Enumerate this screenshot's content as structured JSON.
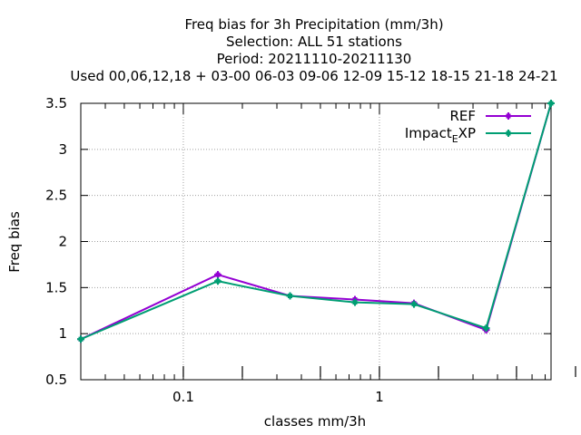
{
  "chart_data": {
    "type": "line",
    "title_lines": [
      "Freq bias  for 3h Precipitation (mm/3h)",
      "Selection: ALL     51 stations",
      "Period: 20211110-20211130",
      "Used  00,06,12,18 + 03-00 06-03 09-06 12-09 15-12 18-15 21-18 24-21"
    ],
    "xlabel": "classes mm/3h",
    "ylabel": "Freq bias",
    "x_scale": "log",
    "xlim": [
      0.03,
      7.5
    ],
    "ylim": [
      0.5,
      3.5
    ],
    "x_ticks": [
      {
        "value": 0.1,
        "label": "0.1"
      },
      {
        "value": 1,
        "label": "1"
      }
    ],
    "y_ticks": [
      {
        "value": 0.5,
        "label": "0.5"
      },
      {
        "value": 1,
        "label": "1"
      },
      {
        "value": 1.5,
        "label": "1.5"
      },
      {
        "value": 2,
        "label": "2"
      },
      {
        "value": 2.5,
        "label": "2.5"
      },
      {
        "value": 3,
        "label": "3"
      },
      {
        "value": 3.5,
        "label": "3.5"
      }
    ],
    "grid": true,
    "legend_position": "top-right",
    "series": [
      {
        "name": "REF",
        "color": "#9400d3",
        "x": [
          0.03,
          0.15,
          0.35,
          0.75,
          1.5,
          3.5,
          7.5
        ],
        "y": [
          0.94,
          1.64,
          1.41,
          1.37,
          1.33,
          1.04,
          3.5
        ]
      },
      {
        "name_main": "Impact",
        "name_sub": "E",
        "name_tail": "XP",
        "color": "#009e73",
        "x": [
          0.03,
          0.15,
          0.35,
          0.75,
          1.5,
          3.5,
          7.5
        ],
        "y": [
          0.94,
          1.57,
          1.41,
          1.34,
          1.32,
          1.06,
          3.5
        ]
      }
    ]
  }
}
